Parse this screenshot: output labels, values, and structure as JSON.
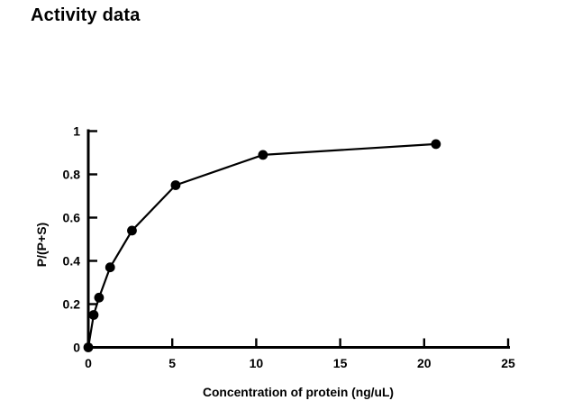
{
  "page": {
    "background_color": "#ffffff",
    "foreground_color": "#000000"
  },
  "chart_data": {
    "type": "line",
    "title": "Activity data",
    "xlabel": "Concentration of protein (ng/uL)",
    "ylabel": "P/(P+S)",
    "x": [
      0,
      0.32,
      0.64,
      1.3,
      2.6,
      5.2,
      10.4,
      20.7
    ],
    "y": [
      0,
      0.15,
      0.23,
      0.37,
      0.54,
      0.75,
      0.89,
      0.94
    ],
    "xlim": [
      0,
      25
    ],
    "ylim": [
      0,
      1
    ],
    "xticks": [
      0,
      5,
      10,
      15,
      20,
      25
    ],
    "yticks": [
      0,
      0.2,
      0.4,
      0.6,
      0.8,
      1
    ],
    "grid": false,
    "legend": null,
    "marker": "filled-circle",
    "line_color": "#000000",
    "marker_color": "#000000",
    "axis_color": "#000000"
  }
}
